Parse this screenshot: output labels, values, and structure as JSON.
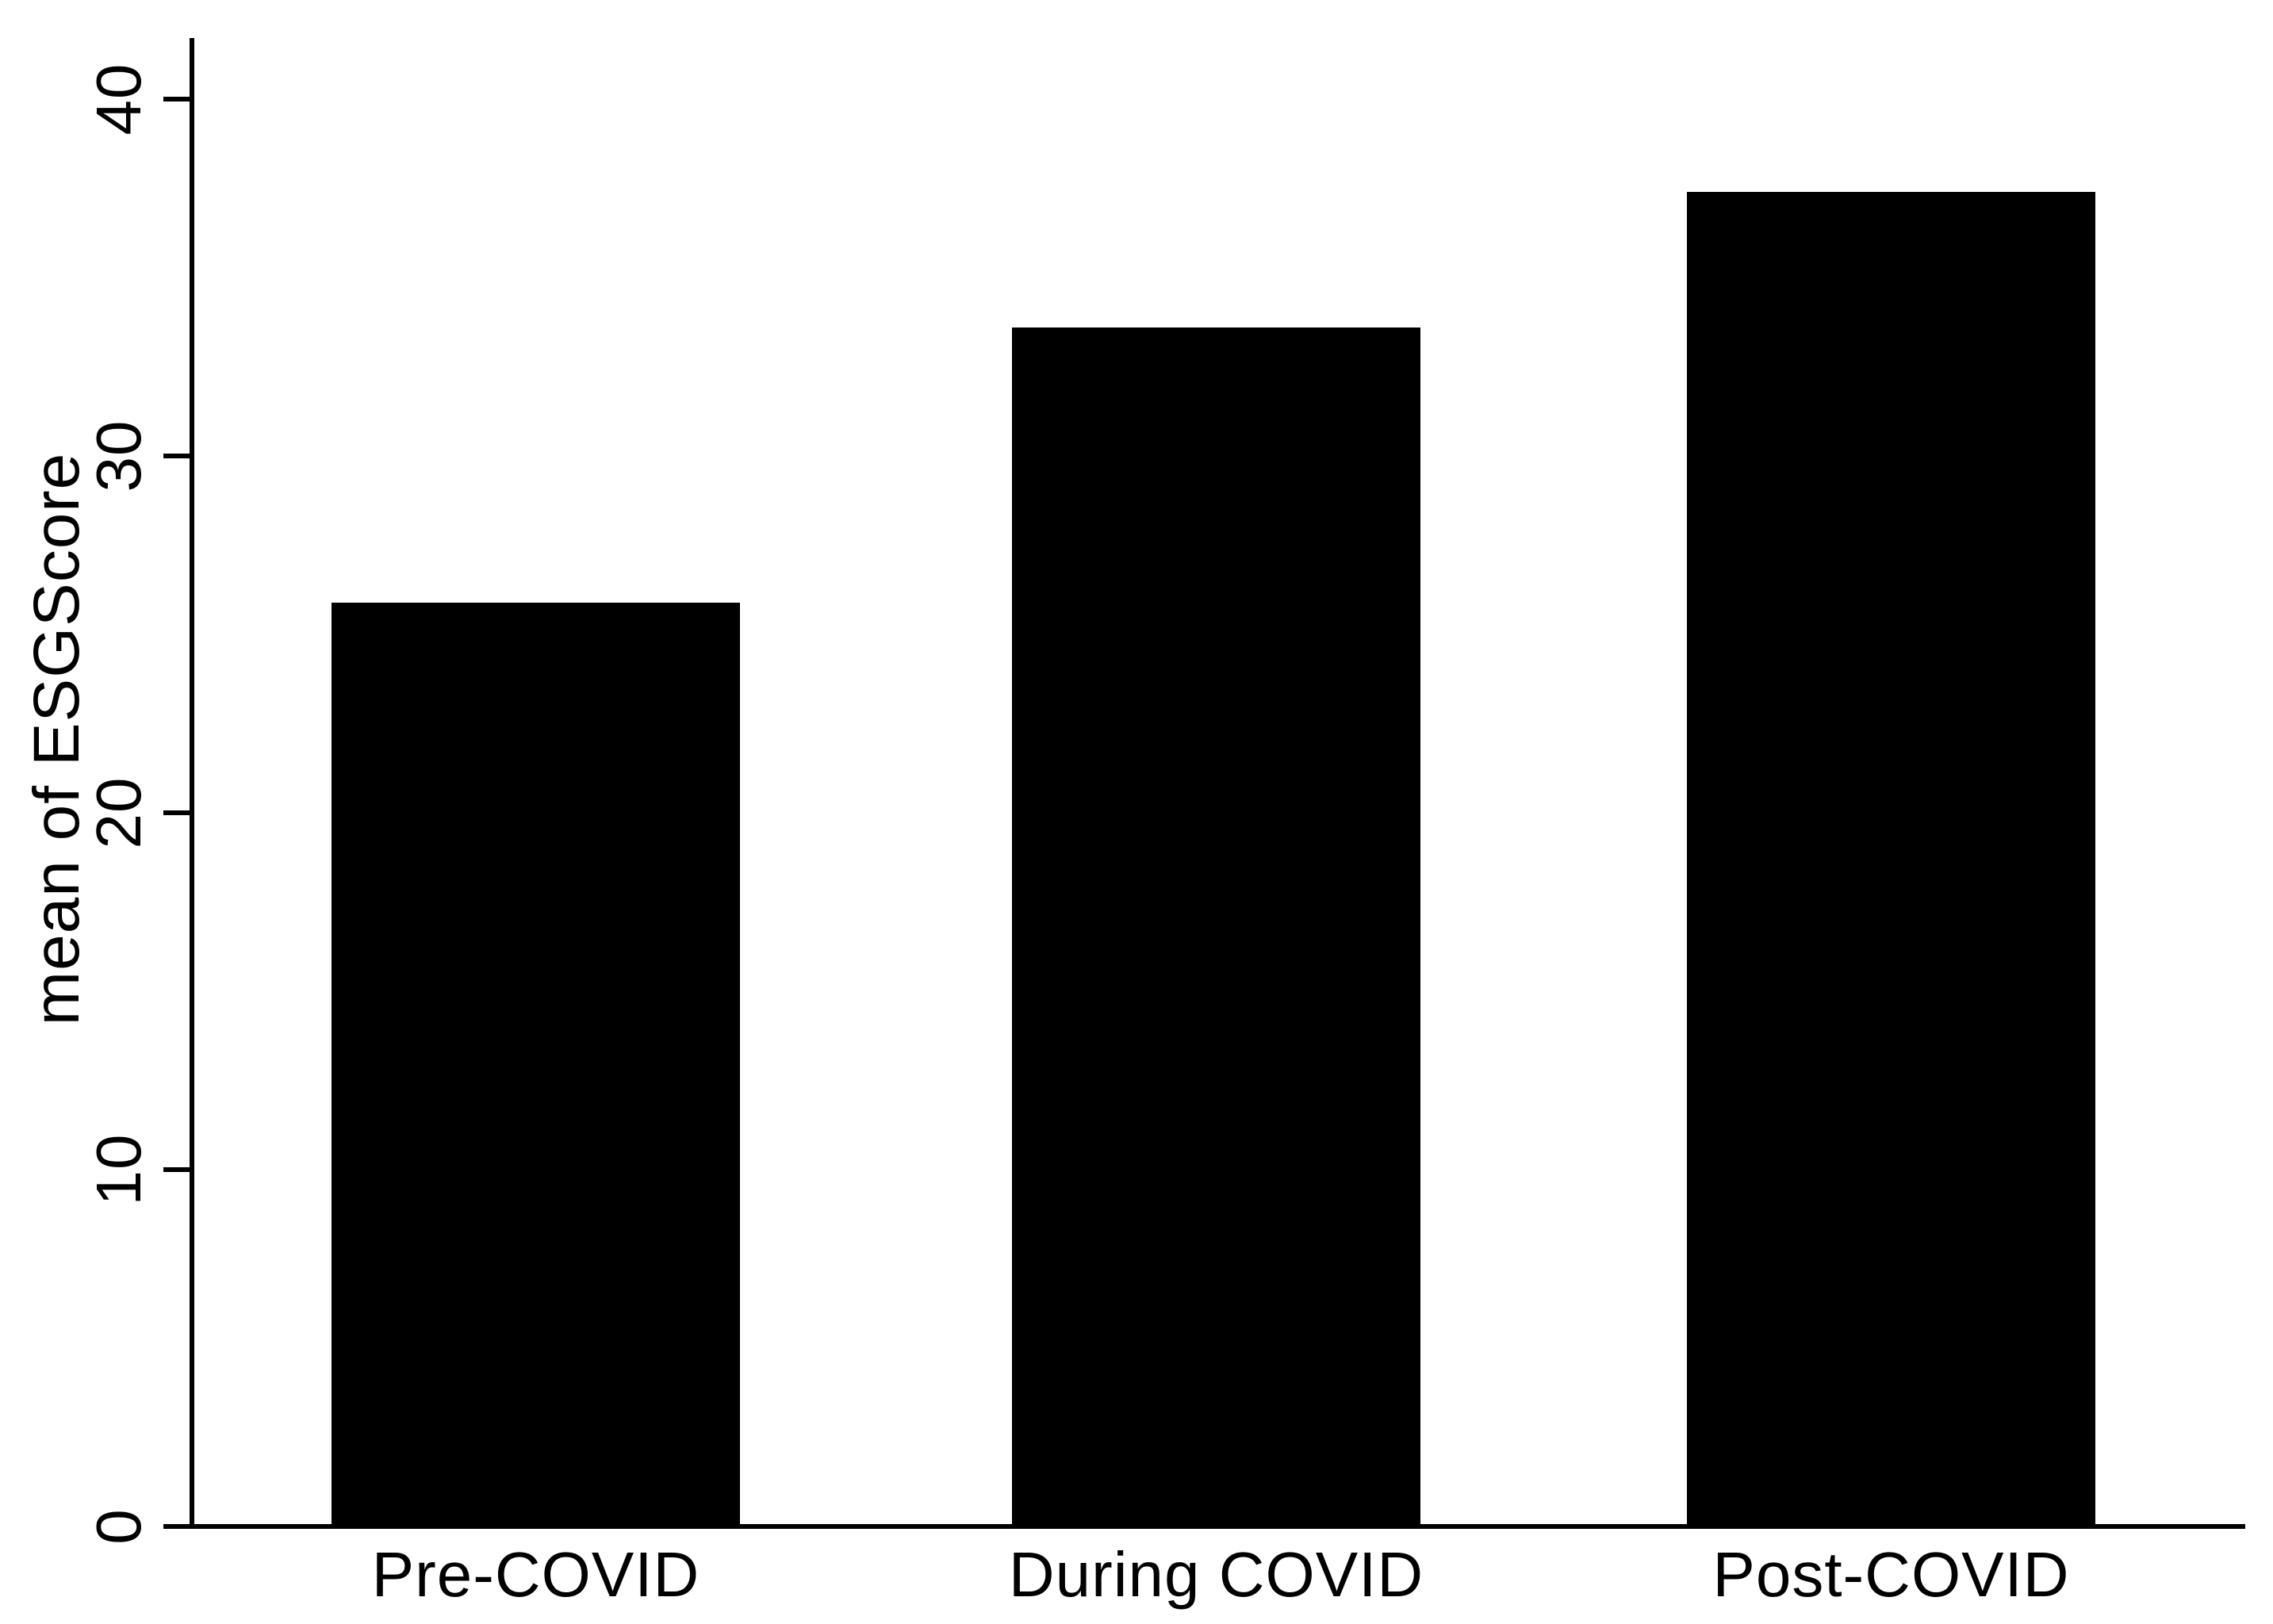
{
  "chart_data": {
    "type": "bar",
    "title": "",
    "categories": [
      "Pre-COVID",
      "During COVID",
      "Post-COVID"
    ],
    "values": [
      25.9,
      33.6,
      37.4
    ],
    "xlabel": "",
    "ylabel": "mean of ESGScore",
    "yticks": [
      0,
      10,
      20,
      30,
      40
    ],
    "ylim": [
      0,
      41.7
    ],
    "grid": "off",
    "legend": "none",
    "bar_color": "#000000",
    "axis_color": "#000000",
    "background_color": "#ffffff"
  }
}
